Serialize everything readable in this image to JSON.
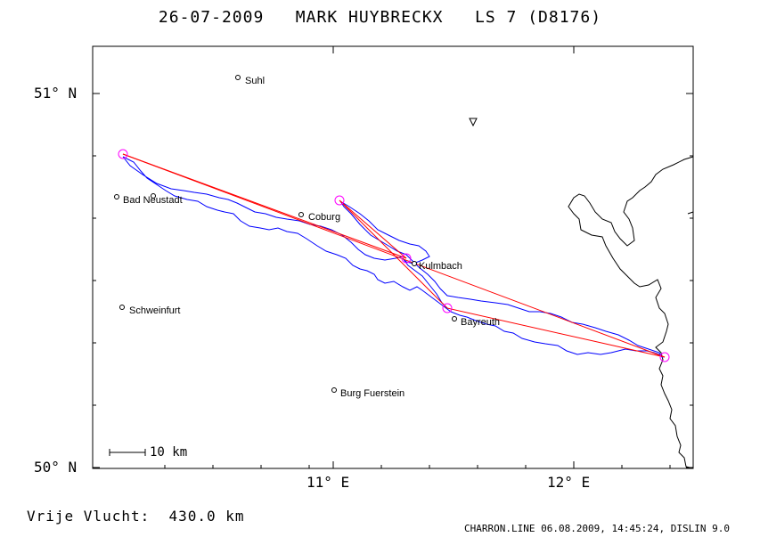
{
  "title": "26-07-2009   MARK HUYBRECKX   LS 7 (D8176)",
  "axes": {
    "lat_labels": [
      "51° N",
      "50° N"
    ],
    "lon_labels": [
      "11° E",
      "12° E"
    ]
  },
  "places": [
    {
      "name": "Suhl"
    },
    {
      "name": "Bad Neustadt"
    },
    {
      "name": "Coburg"
    },
    {
      "name": "Kulmbach"
    },
    {
      "name": "Schweinfurt"
    },
    {
      "name": "Bayreuth"
    },
    {
      "name": "Burg Fuerstein"
    }
  ],
  "scale_bar": {
    "label": "10 km"
  },
  "distance": {
    "label": "Vrije Vlucht:",
    "value": "430.0 km"
  },
  "footer": "CHARRON.LINE 06.08.2009, 14:45:24, DISLIN 9.0",
  "colors": {
    "task_line": "#ff0000",
    "flight_track": "#0000ff",
    "turnpoint": "#ff00ff",
    "border": "#000000"
  }
}
